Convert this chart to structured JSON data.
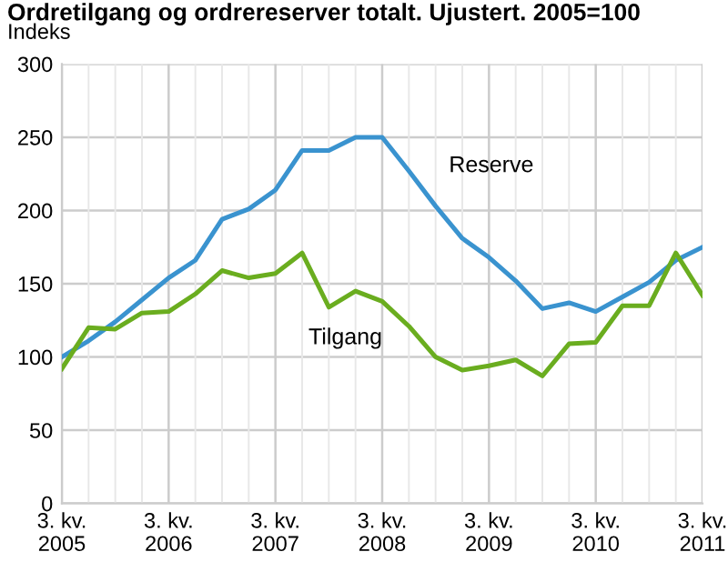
{
  "chart_data": {
    "type": "line",
    "title": "Ordretilgang og ordrereserver totalt. Ujustert. 2005=100",
    "ylabel": "Indeks",
    "categories": [
      "3. kv.\n2005",
      null,
      null,
      null,
      "3. kv.\n2006",
      null,
      null,
      null,
      "3. kv.\n2007",
      null,
      null,
      null,
      "3. kv.\n2008",
      null,
      null,
      null,
      "3. kv.\n2009",
      null,
      null,
      null,
      "3. kv.\n2010",
      null,
      null,
      null,
      "3. kv.\n2011"
    ],
    "series": [
      {
        "name": "Reserve",
        "color": "#3a93cf",
        "values": [
          100,
          111,
          124,
          139,
          154,
          166,
          194,
          201,
          214,
          241,
          241,
          250,
          250,
          227,
          203,
          181,
          168,
          152,
          133,
          137,
          131,
          141,
          151,
          166,
          175
        ]
      },
      {
        "name": "Tilgang",
        "color": "#6aad1f",
        "values": [
          92,
          120,
          119,
          130,
          131,
          143,
          159,
          154,
          157,
          171,
          134,
          145,
          138,
          121,
          100,
          91,
          94,
          98,
          87,
          109,
          110,
          135,
          135,
          171,
          142
        ]
      }
    ],
    "ylim": [
      0,
      300
    ],
    "yticks": [
      0,
      50,
      100,
      150,
      200,
      250,
      300
    ],
    "grid": true,
    "legend": false,
    "marker": "none",
    "line_style": "solid"
  }
}
